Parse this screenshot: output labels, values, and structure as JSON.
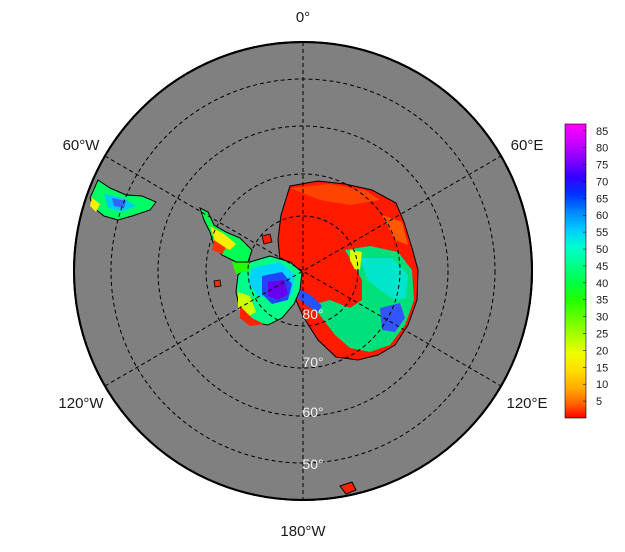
{
  "map": {
    "projection": "south-polar-stereographic",
    "ocean_color": "#808080",
    "longitude_labels": [
      {
        "key": "lon-0",
        "text": "0°"
      },
      {
        "key": "lon-60e",
        "text": "60°E"
      },
      {
        "key": "lon-120e",
        "text": "120°E"
      },
      {
        "key": "lon-180w",
        "text": "180°W"
      },
      {
        "key": "lon-120w",
        "text": "120°W"
      },
      {
        "key": "lon-60w",
        "text": "60°W"
      }
    ],
    "latitude_labels": [
      {
        "key": "lat-80",
        "text": "80°"
      },
      {
        "key": "lat-70",
        "text": "70°"
      },
      {
        "key": "lat-60",
        "text": "60°"
      },
      {
        "key": "lat-50",
        "text": "50°"
      }
    ]
  },
  "colorbar": {
    "ticks": [
      "85",
      "80",
      "75",
      "70",
      "65",
      "60",
      "55",
      "50",
      "45",
      "40",
      "35",
      "30",
      "25",
      "20",
      "15",
      "10",
      "5"
    ],
    "range": [
      0,
      87
    ],
    "colors_top_to_bottom": [
      "#ff00ff",
      "#cc00ff",
      "#8800ff",
      "#3300ff",
      "#0033ff",
      "#0088ff",
      "#00ccff",
      "#00ffcc",
      "#00ff88",
      "#00ff44",
      "#22ff00",
      "#66ff00",
      "#aaff00",
      "#eeff00",
      "#ffdd00",
      "#ffaa00",
      "#ff6600",
      "#ff2200",
      "#ff0000"
    ]
  }
}
